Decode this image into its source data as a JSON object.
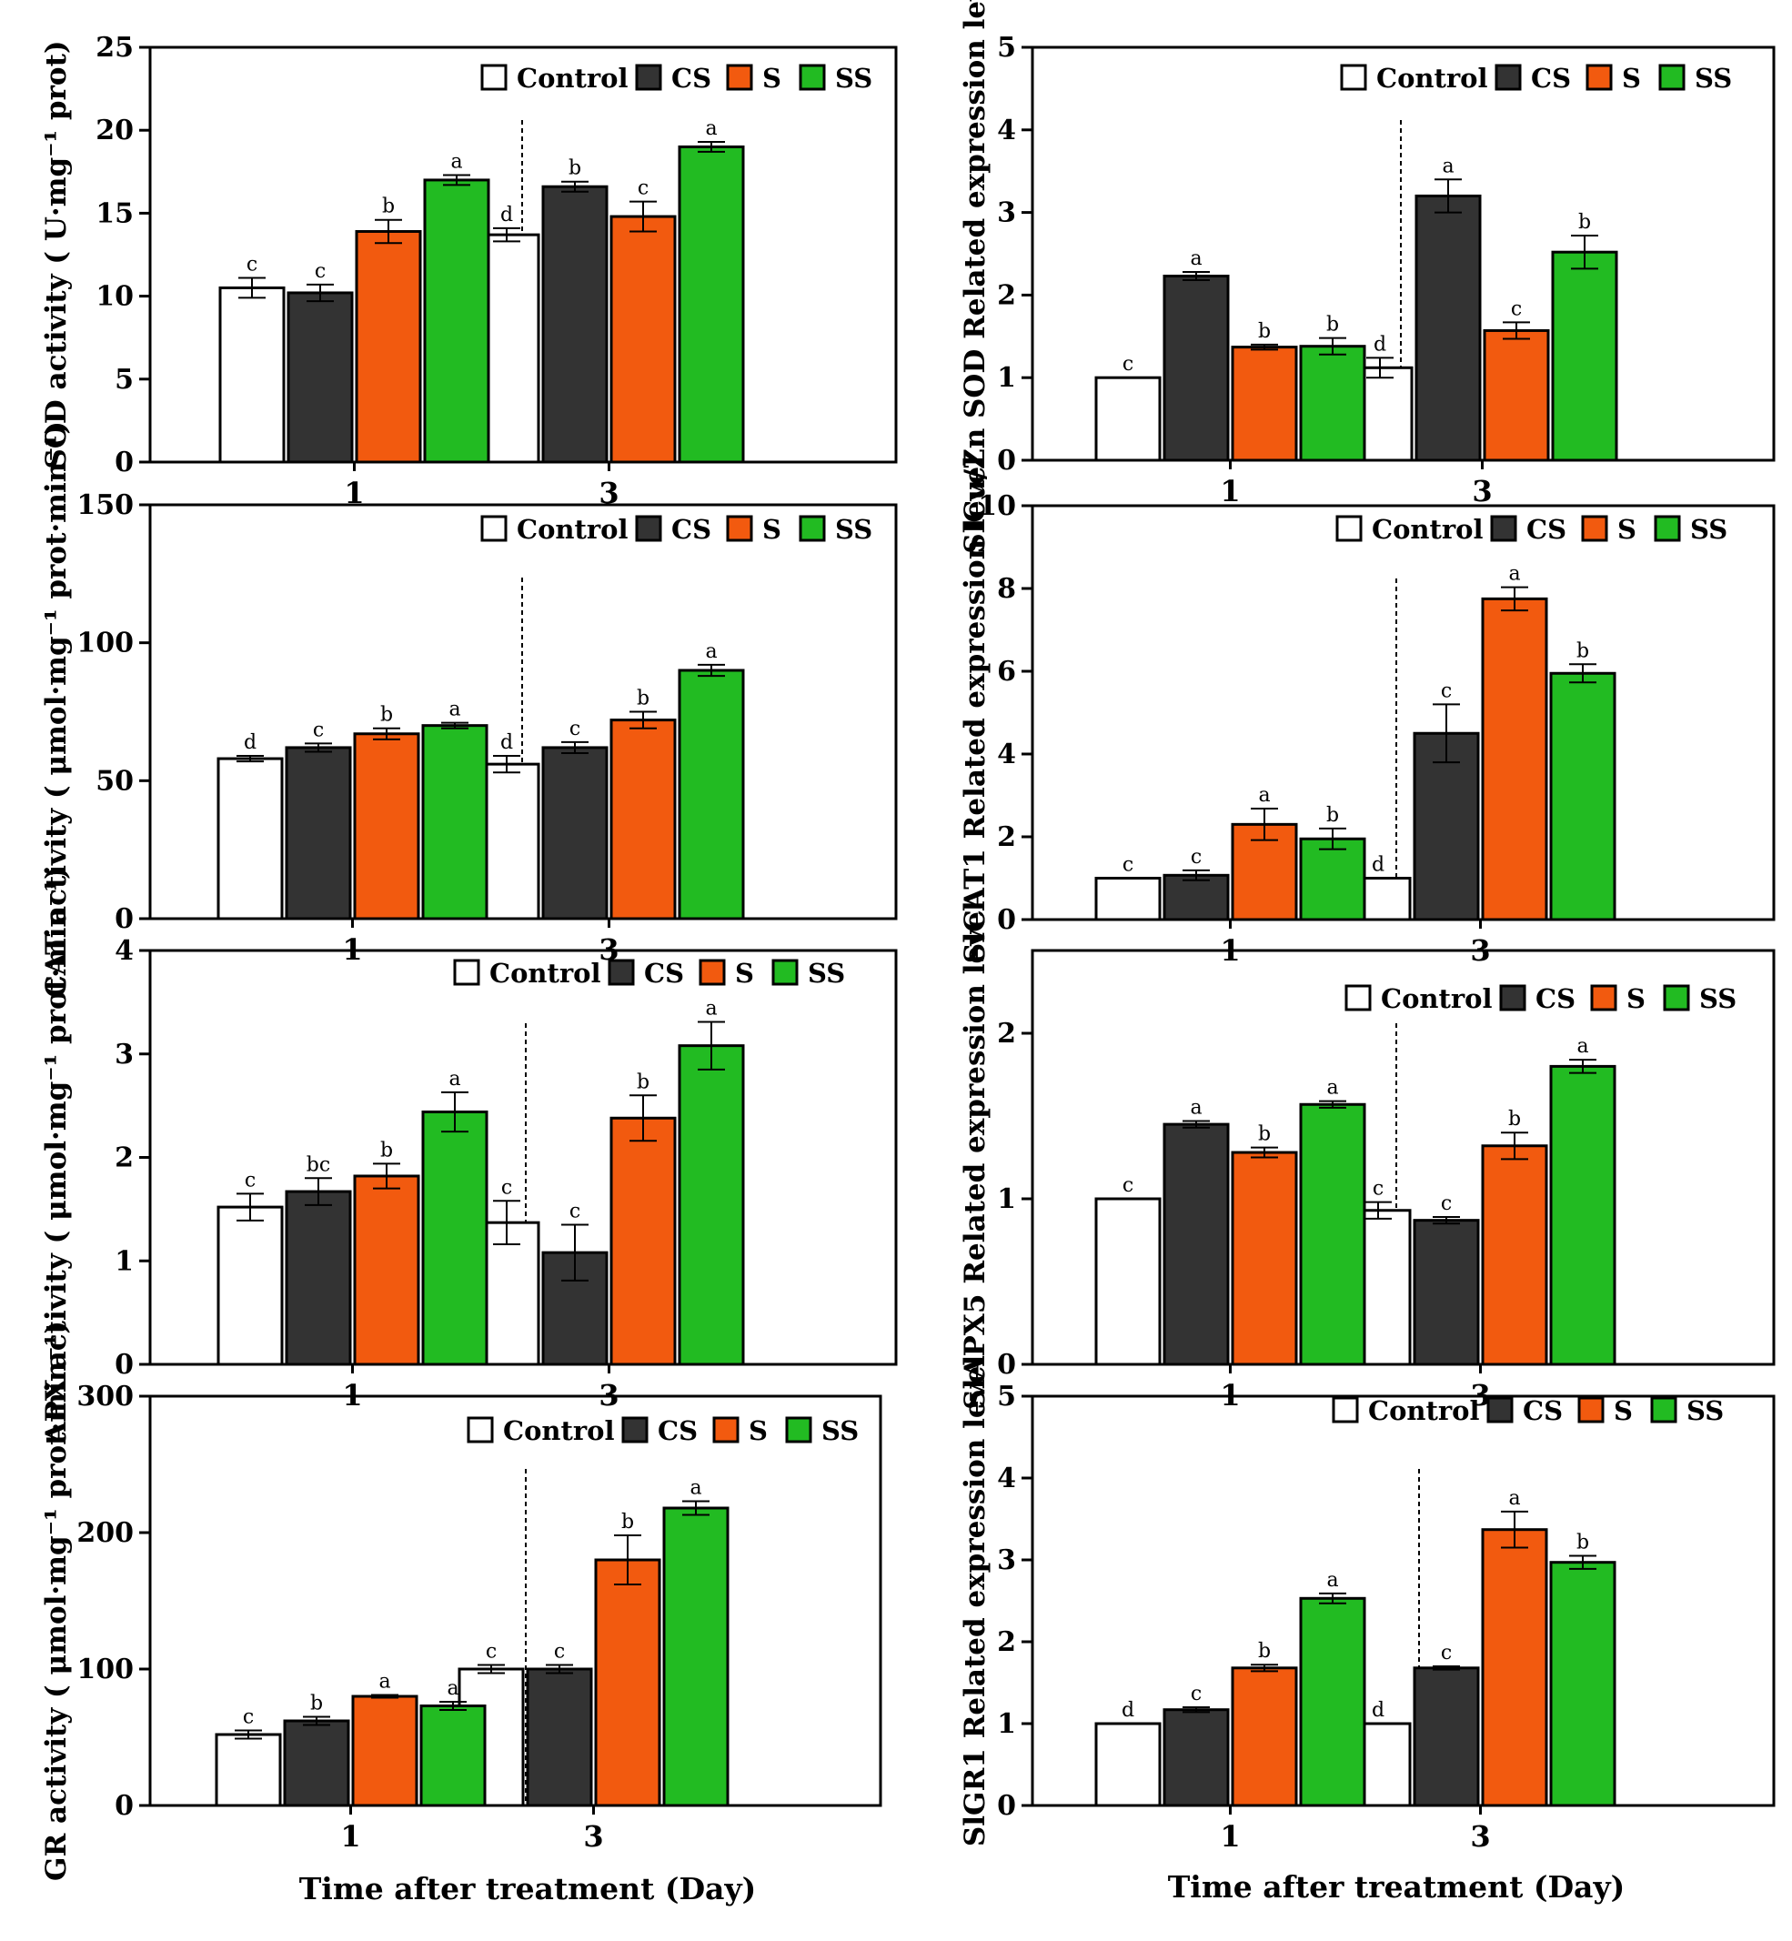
{
  "colors": {
    "Control": "#ffffff",
    "CS": "#333333",
    "S": "#f25a0f",
    "SS": "#22bb22"
  },
  "x_axis_titles": {
    "left": "Time after treatment  (Day)",
    "right": "Time after treatment (Day)"
  },
  "chart_data": [
    {
      "id": "sod",
      "type": "bar",
      "ylabel": "SOD activity ( U·mg⁻¹ prot)",
      "ylim": [
        0,
        25
      ],
      "yticks": [
        "0",
        "5",
        "10",
        "15",
        "20",
        "25"
      ],
      "categories": [
        "1",
        "3"
      ],
      "legend": [
        "Control",
        "CS",
        "S",
        "SS"
      ],
      "series": [
        {
          "name": "Control",
          "values": [
            10.5,
            13.7
          ],
          "errors": [
            0.6,
            0.4
          ],
          "letters": [
            "c",
            "d"
          ]
        },
        {
          "name": "CS",
          "values": [
            10.2,
            16.6
          ],
          "errors": [
            0.5,
            0.3
          ],
          "letters": [
            "c",
            "b"
          ]
        },
        {
          "name": "S",
          "values": [
            13.9,
            14.8
          ],
          "errors": [
            0.7,
            0.9
          ],
          "letters": [
            "b",
            "c"
          ]
        },
        {
          "name": "SS",
          "values": [
            17.0,
            19.0
          ],
          "errors": [
            0.3,
            0.3
          ],
          "letters": [
            "a",
            "a"
          ]
        }
      ]
    },
    {
      "id": "sl-cuzn-sod",
      "type": "bar",
      "ylabel": "SlCu/Zn SOD Related expression level",
      "ylim": [
        0,
        5
      ],
      "yticks": [
        "0",
        "1",
        "2",
        "3",
        "4",
        "5"
      ],
      "categories": [
        "1",
        "3"
      ],
      "legend": [
        "Control",
        "CS",
        "S",
        "SS"
      ],
      "series": [
        {
          "name": "Control",
          "values": [
            1.0,
            1.12
          ],
          "errors": [
            0.0,
            0.12
          ],
          "letters": [
            "c",
            "d"
          ]
        },
        {
          "name": "CS",
          "values": [
            2.23,
            3.2
          ],
          "errors": [
            0.05,
            0.2
          ],
          "letters": [
            "a",
            "a"
          ]
        },
        {
          "name": "S",
          "values": [
            1.37,
            1.57
          ],
          "errors": [
            0.03,
            0.1
          ],
          "letters": [
            "b",
            "c"
          ]
        },
        {
          "name": "SS",
          "values": [
            1.38,
            2.52
          ],
          "errors": [
            0.1,
            0.2
          ],
          "letters": [
            "b",
            "b"
          ]
        }
      ]
    },
    {
      "id": "cat",
      "type": "bar",
      "ylabel": "CAT activity ( μmol·mg⁻¹ prot·min⁻¹)",
      "ylim": [
        0,
        150
      ],
      "yticks": [
        "0",
        "50",
        "100",
        "150"
      ],
      "categories": [
        "1",
        "3"
      ],
      "legend": [
        "Control",
        "CS",
        "S",
        "SS"
      ],
      "series": [
        {
          "name": "Control",
          "values": [
            58,
            56
          ],
          "errors": [
            1,
            3
          ],
          "letters": [
            "d",
            "d"
          ]
        },
        {
          "name": "CS",
          "values": [
            62,
            62
          ],
          "errors": [
            1.5,
            2
          ],
          "letters": [
            "c",
            "c"
          ]
        },
        {
          "name": "S",
          "values": [
            67,
            72
          ],
          "errors": [
            2,
            3
          ],
          "letters": [
            "b",
            "b"
          ]
        },
        {
          "name": "SS",
          "values": [
            70,
            90
          ],
          "errors": [
            1,
            2
          ],
          "letters": [
            "a",
            "a"
          ]
        }
      ]
    },
    {
      "id": "sl-cat1",
      "type": "bar",
      "ylabel": "SlCAT1 Related expression level",
      "ylim": [
        0,
        10
      ],
      "yticks": [
        "0",
        "2",
        "4",
        "6",
        "8",
        "10"
      ],
      "categories": [
        "1",
        "3"
      ],
      "legend": [
        "Control",
        "CS",
        "S",
        "SS"
      ],
      "series": [
        {
          "name": "Control",
          "values": [
            1.0,
            1.0
          ],
          "errors": [
            0.0,
            0.0
          ],
          "letters": [
            "c",
            "d"
          ]
        },
        {
          "name": "CS",
          "values": [
            1.07,
            4.5
          ],
          "errors": [
            0.12,
            0.7
          ],
          "letters": [
            "c",
            "c"
          ]
        },
        {
          "name": "S",
          "values": [
            2.3,
            7.75
          ],
          "errors": [
            0.38,
            0.28
          ],
          "letters": [
            "a",
            "a"
          ]
        },
        {
          "name": "SS",
          "values": [
            1.95,
            5.95
          ],
          "errors": [
            0.25,
            0.22
          ],
          "letters": [
            "b",
            "b"
          ]
        }
      ]
    },
    {
      "id": "apx",
      "type": "bar",
      "ylabel": "APX activity ( μmol·mg⁻¹ prot·min⁻¹)",
      "ylim": [
        0,
        4
      ],
      "yticks": [
        "0",
        "1",
        "2",
        "3",
        "4"
      ],
      "categories": [
        "1",
        "3"
      ],
      "legend": [
        "Control",
        "CS",
        "S",
        "SS"
      ],
      "series": [
        {
          "name": "Control",
          "values": [
            1.52,
            1.37
          ],
          "errors": [
            0.13,
            0.21
          ],
          "letters": [
            "c",
            "c"
          ]
        },
        {
          "name": "CS",
          "values": [
            1.67,
            1.08
          ],
          "errors": [
            0.13,
            0.27
          ],
          "letters": [
            "bc",
            "c"
          ]
        },
        {
          "name": "S",
          "values": [
            1.82,
            2.38
          ],
          "errors": [
            0.12,
            0.22
          ],
          "letters": [
            "b",
            "b"
          ]
        },
        {
          "name": "SS",
          "values": [
            2.44,
            3.08
          ],
          "errors": [
            0.19,
            0.23
          ],
          "letters": [
            "a",
            "a"
          ]
        }
      ]
    },
    {
      "id": "sl-apx5",
      "type": "bar",
      "ylabel": "SlAPX5 Related expression level",
      "ylim": [
        0,
        2.5
      ],
      "yticks": [
        "0",
        "1",
        "2"
      ],
      "yticks_values": [
        0,
        1,
        2
      ],
      "categories": [
        "1",
        "3"
      ],
      "legend": [
        "Control",
        "CS",
        "S",
        "SS"
      ],
      "series": [
        {
          "name": "Control",
          "values": [
            1.0,
            0.93
          ],
          "errors": [
            0.0,
            0.05
          ],
          "letters": [
            "c",
            "c"
          ]
        },
        {
          "name": "CS",
          "values": [
            1.45,
            0.87
          ],
          "errors": [
            0.02,
            0.02
          ],
          "letters": [
            "a",
            "c"
          ]
        },
        {
          "name": "S",
          "values": [
            1.28,
            1.32
          ],
          "errors": [
            0.03,
            0.08
          ],
          "letters": [
            "b",
            "b"
          ]
        },
        {
          "name": "SS",
          "values": [
            1.57,
            1.8
          ],
          "errors": [
            0.02,
            0.04
          ],
          "letters": [
            "a",
            "a"
          ]
        }
      ]
    },
    {
      "id": "gr",
      "type": "bar",
      "ylabel": "GR activity ( μmol·mg⁻¹ prot·min⁻¹)",
      "ylim": [
        0,
        300
      ],
      "yticks": [
        "0",
        "100",
        "200",
        "300"
      ],
      "yticks_values": [
        0,
        100,
        200,
        300
      ],
      "categories": [
        "1",
        "3"
      ],
      "legend": [
        "Control",
        "CS",
        "S",
        "SS"
      ],
      "series": [
        {
          "name": "Control",
          "values": [
            52,
            100
          ],
          "errors": [
            3,
            3
          ],
          "letters": [
            "c",
            "c"
          ]
        },
        {
          "name": "CS",
          "values": [
            62,
            100
          ],
          "errors": [
            3,
            3
          ],
          "letters": [
            "b",
            "c"
          ]
        },
        {
          "name": "S",
          "values": [
            80,
            180
          ],
          "errors": [
            1,
            18
          ],
          "letters": [
            "a",
            "b"
          ]
        },
        {
          "name": "SS",
          "values": [
            73,
            218
          ],
          "errors": [
            3,
            5
          ],
          "letters": [
            "a",
            "a"
          ]
        }
      ]
    },
    {
      "id": "sl-gr1",
      "type": "bar",
      "ylabel": "SlGR1 Related expression level",
      "ylim": [
        0,
        5
      ],
      "yticks": [
        "0",
        "1",
        "2",
        "3",
        "4",
        "5"
      ],
      "categories": [
        "1",
        "3"
      ],
      "legend": [
        "Control",
        "CS",
        "S",
        "SS"
      ],
      "series": [
        {
          "name": "Control",
          "values": [
            1.0,
            1.0
          ],
          "errors": [
            0.0,
            0.0
          ],
          "letters": [
            "d",
            "d"
          ]
        },
        {
          "name": "CS",
          "values": [
            1.17,
            1.68
          ],
          "errors": [
            0.03,
            0.02
          ],
          "letters": [
            "c",
            "c"
          ]
        },
        {
          "name": "S",
          "values": [
            1.68,
            3.37
          ],
          "errors": [
            0.04,
            0.22
          ],
          "letters": [
            "b",
            "a"
          ]
        },
        {
          "name": "SS",
          "values": [
            2.53,
            2.97
          ],
          "errors": [
            0.06,
            0.08
          ],
          "letters": [
            "a",
            "b"
          ]
        }
      ]
    }
  ]
}
